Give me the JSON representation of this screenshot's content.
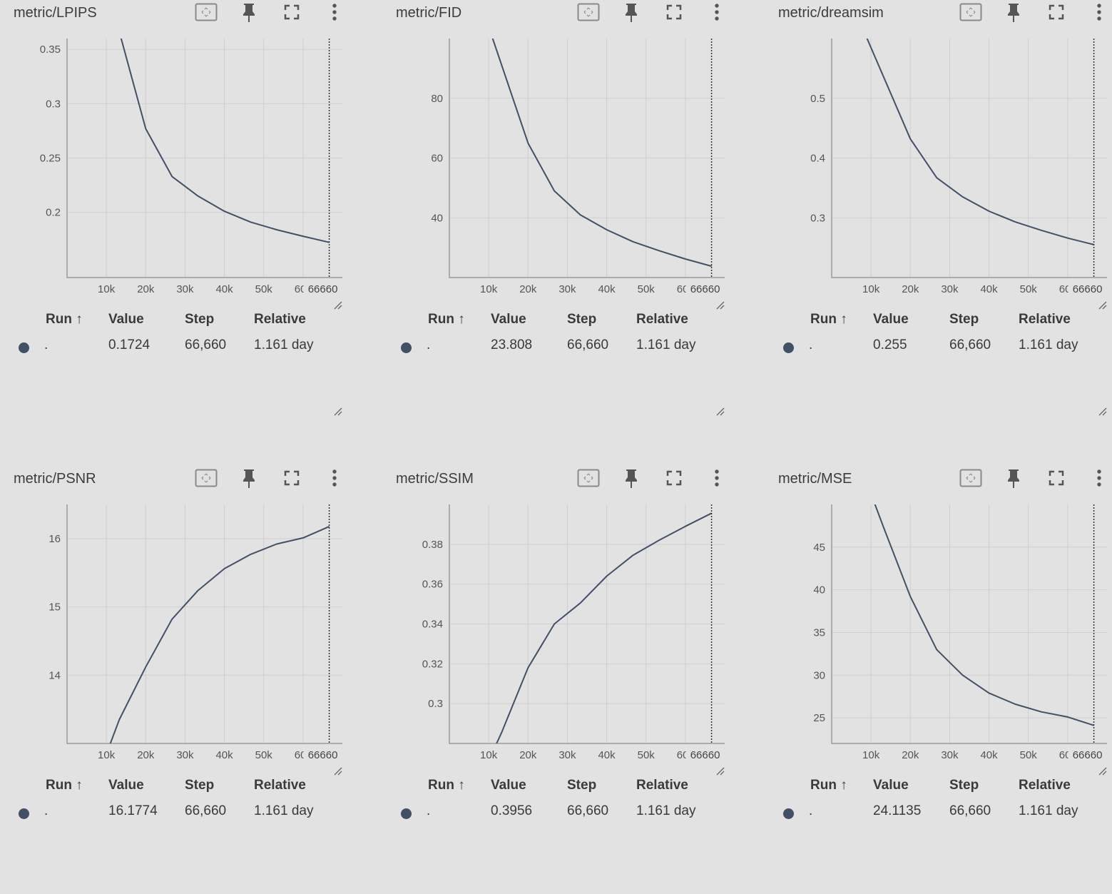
{
  "colors": {
    "series": "#425066",
    "grid": "#cfcfcf",
    "background": "#e2e2e2",
    "axis": "#9a9a9a"
  },
  "icons": [
    "fit-to-domain-icon",
    "pin-icon",
    "fullscreen-icon",
    "more-vert-icon",
    "resize-handle-icon"
  ],
  "table": {
    "headers": {
      "run": "Run ↑",
      "value": "Value",
      "step": "Step",
      "relative": "Relative"
    }
  },
  "panels": [
    {
      "title": "metric/LPIPS",
      "row": {
        "run": ".",
        "value": "0.1724",
        "step": "66,660",
        "relative": "1.161 day"
      },
      "step_marker": "66660"
    },
    {
      "title": "metric/FID",
      "row": {
        "run": ".",
        "value": "23.808",
        "step": "66,660",
        "relative": "1.161 day"
      },
      "step_marker": "66660"
    },
    {
      "title": "metric/dreamsim",
      "row": {
        "run": ".",
        "value": "0.255",
        "step": "66,660",
        "relative": "1.161 day"
      },
      "step_marker": "66660"
    },
    {
      "title": "metric/PSNR",
      "row": {
        "run": ".",
        "value": "16.1774",
        "step": "66,660",
        "relative": "1.161 day"
      },
      "step_marker": "66660"
    },
    {
      "title": "metric/SSIM",
      "row": {
        "run": ".",
        "value": "0.3956",
        "step": "66,660",
        "relative": "1.161 day"
      },
      "step_marker": "66660"
    },
    {
      "title": "metric/MSE",
      "row": {
        "run": ".",
        "value": "24.1135",
        "step": "66,660",
        "relative": "1.161 day"
      },
      "step_marker": "66660"
    }
  ],
  "chart_data": [
    {
      "type": "line",
      "title": "metric/LPIPS",
      "xlim": [
        0,
        70000
      ],
      "ylim": [
        0.14,
        0.36
      ],
      "x_ticks": [
        "10k",
        "20k",
        "30k",
        "40k",
        "50k",
        "60k"
      ],
      "y_ticks": [
        "0.2",
        "0.25",
        "0.3",
        "0.35"
      ],
      "x": [
        13000,
        20000,
        26700,
        33300,
        40000,
        46700,
        53300,
        60000,
        66660
      ],
      "y": [
        0.37,
        0.277,
        0.233,
        0.215,
        0.201,
        0.191,
        0.184,
        0.178,
        0.1724
      ]
    },
    {
      "type": "line",
      "title": "metric/FID",
      "xlim": [
        0,
        70000
      ],
      "ylim": [
        20,
        100
      ],
      "x_ticks": [
        "10k",
        "20k",
        "30k",
        "40k",
        "50k",
        "60k"
      ],
      "y_ticks": [
        "40",
        "60",
        "80"
      ],
      "x": [
        11000,
        20000,
        26700,
        33300,
        40000,
        46700,
        53300,
        60000,
        66660
      ],
      "y": [
        100,
        65,
        49,
        41,
        36,
        32,
        29,
        26.2,
        23.808
      ]
    },
    {
      "type": "line",
      "title": "metric/dreamsim",
      "xlim": [
        0,
        70000
      ],
      "ylim": [
        0.2,
        0.6
      ],
      "x_ticks": [
        "10k",
        "20k",
        "30k",
        "40k",
        "50k",
        "60k"
      ],
      "y_ticks": [
        "0.3",
        "0.4",
        "0.5"
      ],
      "x": [
        9000,
        20000,
        26700,
        33300,
        40000,
        46700,
        53300,
        60000,
        66660
      ],
      "y": [
        0.6,
        0.432,
        0.367,
        0.335,
        0.311,
        0.293,
        0.279,
        0.266,
        0.255
      ]
    },
    {
      "type": "line",
      "title": "metric/PSNR",
      "xlim": [
        0,
        70000
      ],
      "ylim": [
        13,
        16.5
      ],
      "x_ticks": [
        "10k",
        "20k",
        "30k",
        "40k",
        "50k",
        "60k"
      ],
      "y_ticks": [
        "14",
        "15",
        "16"
      ],
      "x": [
        11000,
        13300,
        20000,
        26700,
        33300,
        40000,
        46700,
        53300,
        60000,
        66660
      ],
      "y": [
        13.0,
        13.35,
        14.12,
        14.82,
        15.24,
        15.56,
        15.77,
        15.92,
        16.01,
        16.1774
      ]
    },
    {
      "type": "line",
      "title": "metric/SSIM",
      "xlim": [
        0,
        70000
      ],
      "ylim": [
        0.28,
        0.4
      ],
      "x_ticks": [
        "10k",
        "20k",
        "30k",
        "40k",
        "50k",
        "60k"
      ],
      "y_ticks": [
        "0.3",
        "0.32",
        "0.34",
        "0.36",
        "0.38"
      ],
      "x": [
        12000,
        13300,
        20000,
        26700,
        33300,
        40000,
        46700,
        53300,
        60000,
        66660
      ],
      "y": [
        0.28,
        0.2855,
        0.318,
        0.34,
        0.3505,
        0.364,
        0.3745,
        0.382,
        0.389,
        0.3956
      ]
    },
    {
      "type": "line",
      "title": "metric/MSE",
      "xlim": [
        0,
        70000
      ],
      "ylim": [
        22,
        50
      ],
      "x_ticks": [
        "10k",
        "20k",
        "30k",
        "40k",
        "50k",
        "60k"
      ],
      "y_ticks": [
        "25",
        "30",
        "35",
        "40",
        "45"
      ],
      "x": [
        11000,
        13300,
        20000,
        26700,
        33300,
        40000,
        46700,
        53300,
        60000,
        66660
      ],
      "y": [
        50,
        47.2,
        39.2,
        33.0,
        30.0,
        27.9,
        26.6,
        25.7,
        25.1,
        24.1135
      ]
    }
  ]
}
